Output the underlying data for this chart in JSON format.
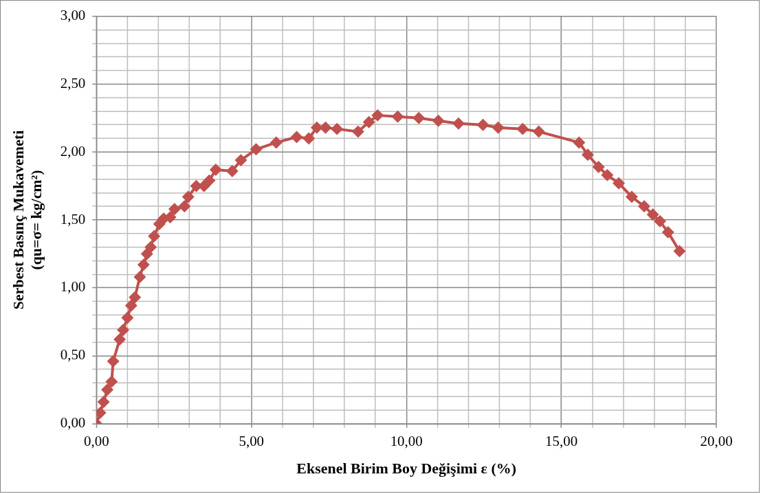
{
  "chart_data": {
    "type": "line",
    "xlabel": "Eksenel Birim Boy Değişimi ε (%)",
    "ylabel": "Serbest Basınç Mukavemeti\n(qu=σ= kg/cm²)",
    "x": [
      0,
      0.12,
      0.23,
      0.35,
      0.49,
      0.54,
      0.75,
      0.86,
      1.0,
      1.12,
      1.24,
      1.4,
      1.52,
      1.63,
      1.75,
      1.86,
      2.03,
      2.17,
      2.38,
      2.52,
      2.84,
      2.96,
      3.22,
      3.47,
      3.64,
      3.85,
      4.38,
      4.66,
      5.15,
      5.8,
      6.46,
      6.85,
      7.11,
      7.39,
      7.76,
      8.44,
      8.79,
      9.07,
      9.72,
      10.4,
      11.03,
      11.68,
      12.47,
      12.96,
      13.75,
      14.27,
      15.57,
      15.85,
      16.2,
      16.48,
      16.85,
      17.27,
      17.67,
      17.95,
      18.18,
      18.44,
      18.81
    ],
    "series": [
      {
        "color": "#c0504d",
        "values": [
          0,
          0.08,
          0.16,
          0.25,
          0.31,
          0.46,
          0.62,
          0.69,
          0.78,
          0.87,
          0.93,
          1.08,
          1.17,
          1.25,
          1.3,
          1.38,
          1.47,
          1.51,
          1.52,
          1.58,
          1.6,
          1.67,
          1.75,
          1.75,
          1.79,
          1.87,
          1.86,
          1.94,
          2.02,
          2.07,
          2.11,
          2.1,
          2.18,
          2.18,
          2.17,
          2.15,
          2.22,
          2.27,
          2.26,
          2.25,
          2.23,
          2.21,
          2.2,
          2.18,
          2.17,
          2.15,
          2.07,
          1.98,
          1.89,
          1.83,
          1.77,
          1.67,
          1.6,
          1.54,
          1.49,
          1.41,
          1.27
        ]
      }
    ],
    "xlim": [
      0,
      20
    ],
    "ylim": [
      0,
      3
    ],
    "xticks": [
      {
        "value": 0,
        "label": "0,00"
      },
      {
        "value": 1,
        "label": null
      },
      {
        "value": 2,
        "label": null
      },
      {
        "value": 3,
        "label": null
      },
      {
        "value": 4,
        "label": null
      },
      {
        "value": 5,
        "label": "5,00"
      },
      {
        "value": 6,
        "label": null
      },
      {
        "value": 7,
        "label": null
      },
      {
        "value": 8,
        "label": null
      },
      {
        "value": 9,
        "label": null
      },
      {
        "value": 10,
        "label": "10,00"
      },
      {
        "value": 11,
        "label": null
      },
      {
        "value": 12,
        "label": null
      },
      {
        "value": 13,
        "label": null
      },
      {
        "value": 14,
        "label": null
      },
      {
        "value": 15,
        "label": "15,00"
      },
      {
        "value": 16,
        "label": null
      },
      {
        "value": 17,
        "label": null
      },
      {
        "value": 18,
        "label": null
      },
      {
        "value": 19,
        "label": null
      },
      {
        "value": 20,
        "label": "20,00"
      }
    ],
    "yticks": [
      {
        "value": 0,
        "label": "0,00"
      },
      {
        "value": 0.1,
        "label": null
      },
      {
        "value": 0.2,
        "label": null
      },
      {
        "value": 0.3,
        "label": null
      },
      {
        "value": 0.4,
        "label": null
      },
      {
        "value": 0.5,
        "label": "0,50"
      },
      {
        "value": 0.6,
        "label": null
      },
      {
        "value": 0.7,
        "label": null
      },
      {
        "value": 0.8,
        "label": null
      },
      {
        "value": 0.9,
        "label": null
      },
      {
        "value": 1,
        "label": "1,00"
      },
      {
        "value": 1.1,
        "label": null
      },
      {
        "value": 1.2,
        "label": null
      },
      {
        "value": 1.3,
        "label": null
      },
      {
        "value": 1.4,
        "label": null
      },
      {
        "value": 1.5,
        "label": "1,50"
      },
      {
        "value": 1.6,
        "label": null
      },
      {
        "value": 1.7,
        "label": null
      },
      {
        "value": 1.8,
        "label": null
      },
      {
        "value": 1.9,
        "label": null
      },
      {
        "value": 2,
        "label": "2,00"
      },
      {
        "value": 2.1,
        "label": null
      },
      {
        "value": 2.2,
        "label": null
      },
      {
        "value": 2.3,
        "label": null
      },
      {
        "value": 2.4,
        "label": null
      },
      {
        "value": 2.5,
        "label": "2,50"
      },
      {
        "value": 2.6,
        "label": null
      },
      {
        "value": 2.7,
        "label": null
      },
      {
        "value": 2.8,
        "label": null
      },
      {
        "value": 2.9,
        "label": null
      },
      {
        "value": 3,
        "label": "3,00"
      }
    ],
    "grid": true,
    "legend": false,
    "marker": "diamond",
    "line_style": "solid"
  }
}
